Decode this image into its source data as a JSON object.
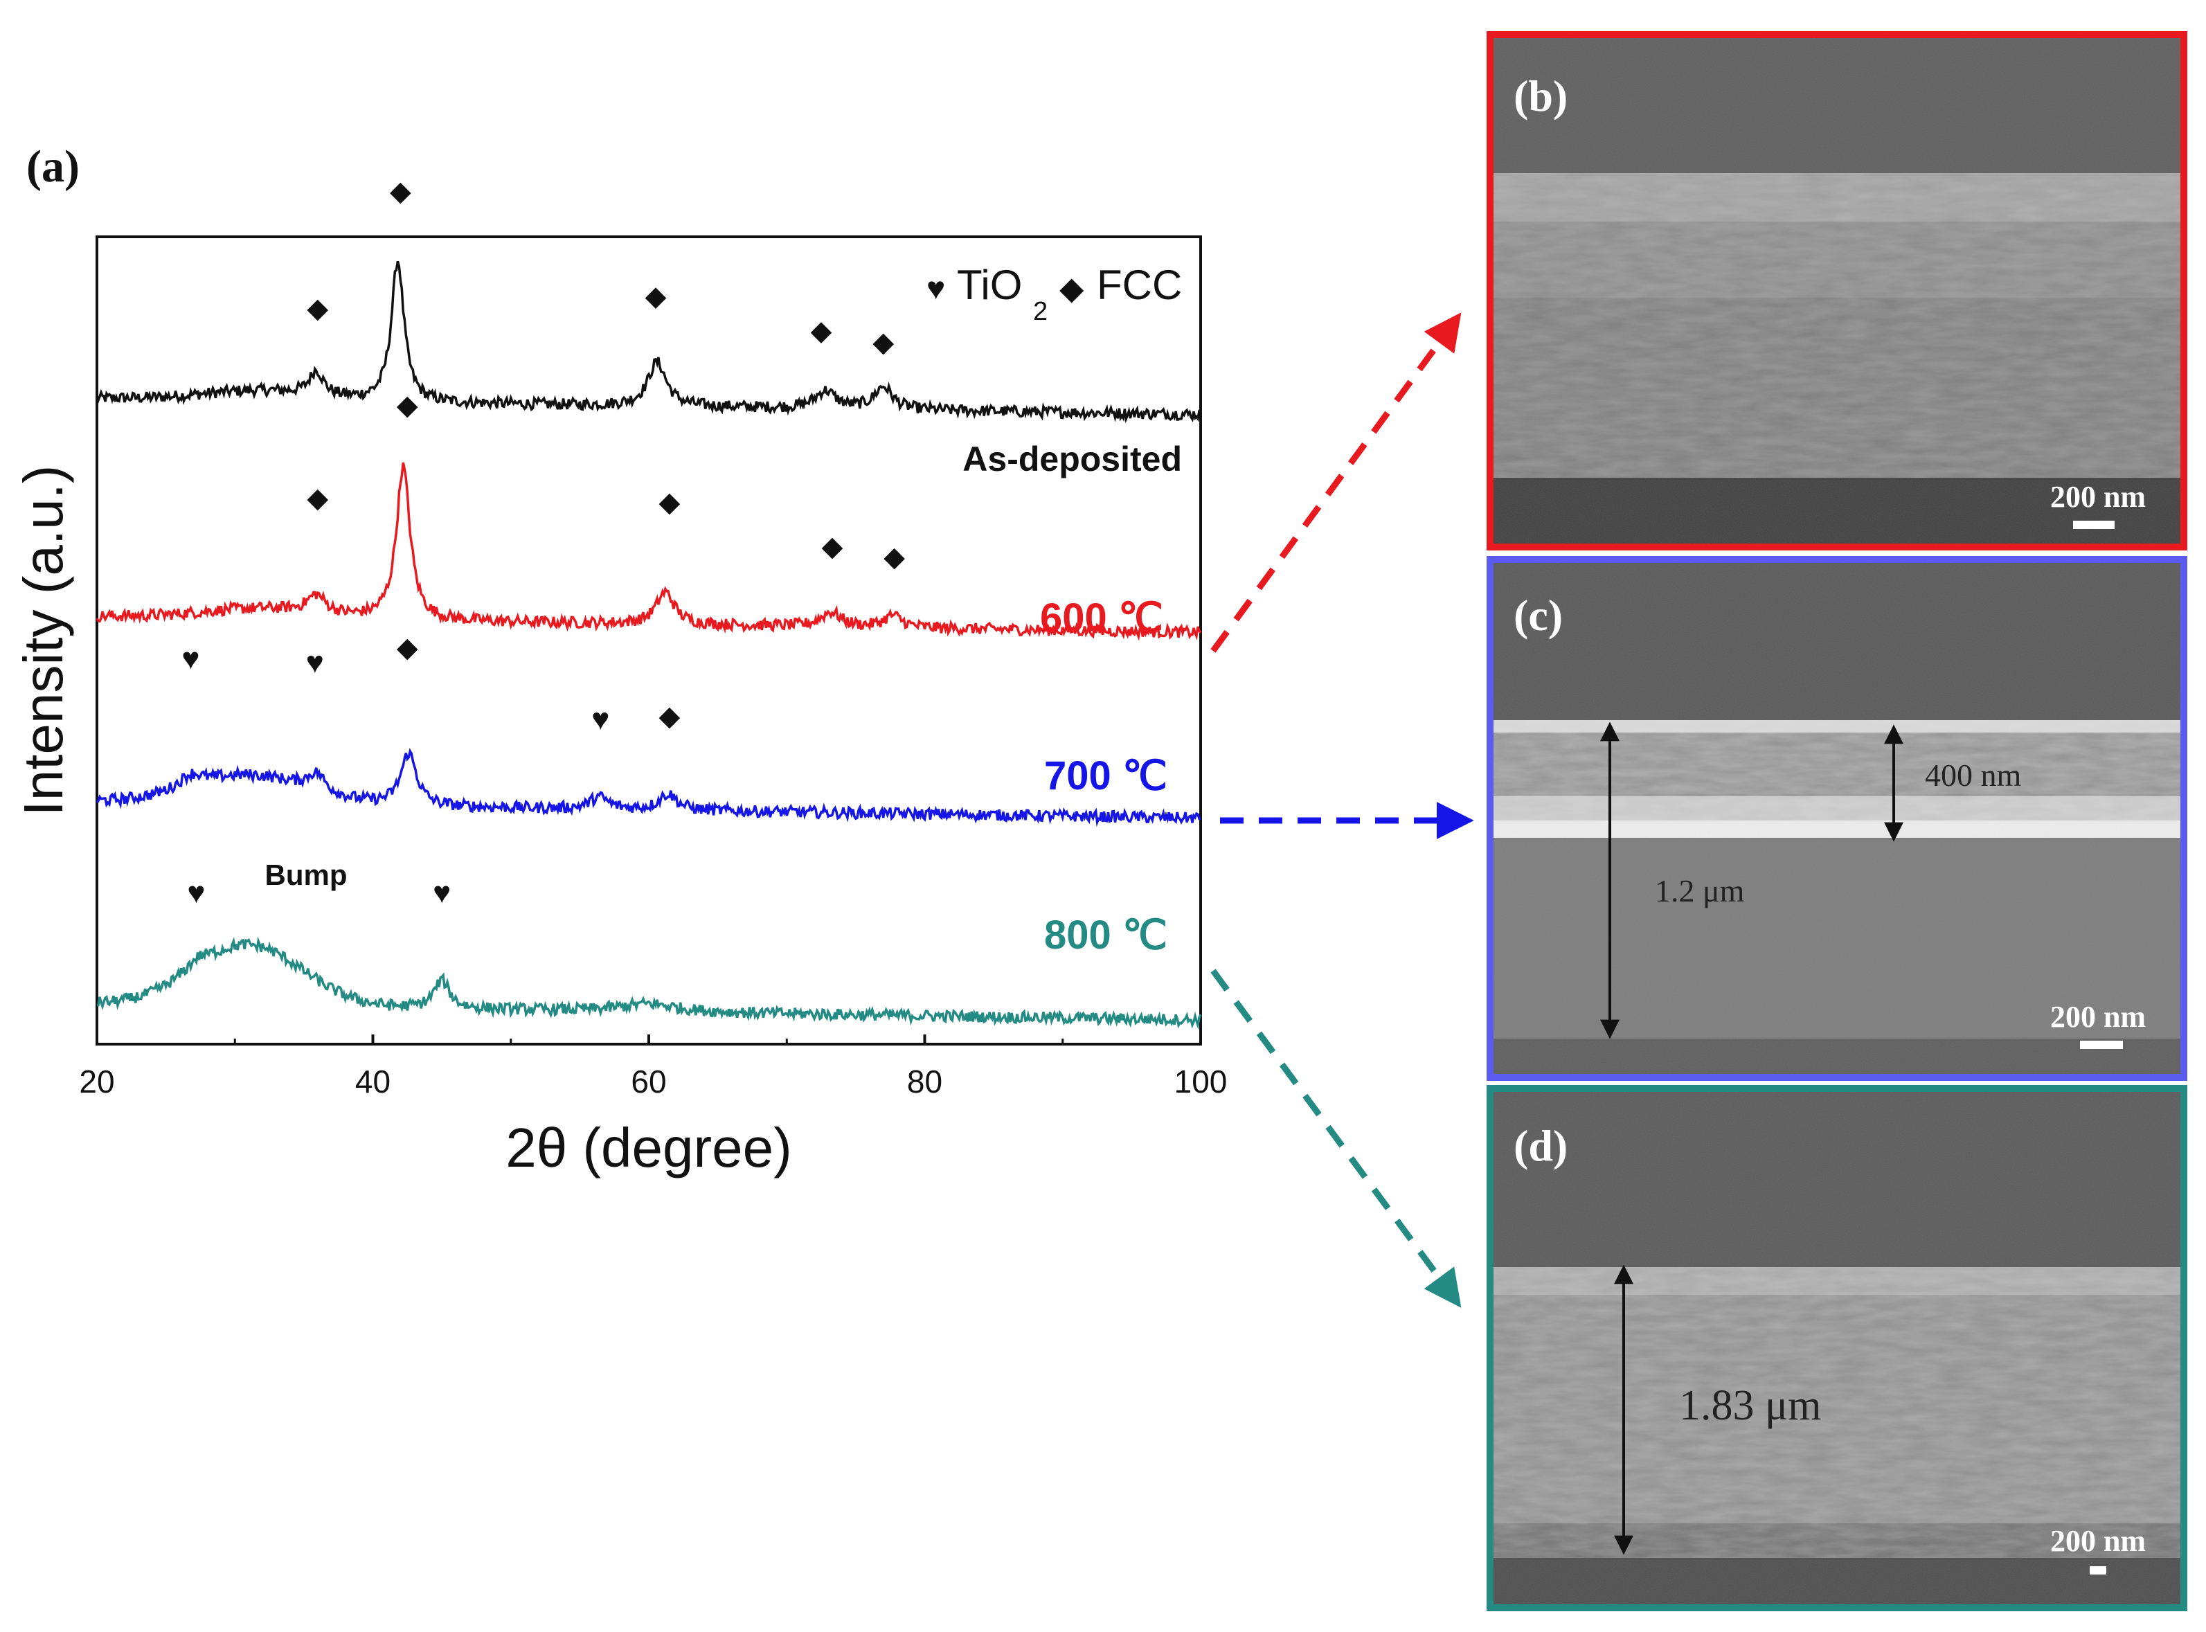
{
  "panel_labels": {
    "a": "(a)",
    "b": "(b)",
    "c": "(c)",
    "d": "(d)"
  },
  "legend": {
    "tio2_symbol": "♥",
    "tio2_text": "TiO",
    "tio2_sub": "2",
    "fcc_symbol": "◆",
    "fcc_text": "FCC"
  },
  "annotations": {
    "bump": "Bump",
    "heart_symbol": "♥",
    "diamond_symbol": "◆"
  },
  "sem": {
    "b": {
      "scale": "200 nm",
      "border_color": "#e8191f"
    },
    "c": {
      "scale": "200 nm",
      "border_color": "#5a5cf0",
      "thickness_outer": "1.2 μm",
      "thickness_inner": "400 nm"
    },
    "d": {
      "scale": "200 nm",
      "border_color": "#238a84",
      "thickness": "1.83 μm"
    }
  },
  "chart_data": {
    "type": "line",
    "xlabel": "2θ (degree)",
    "ylabel": "Intensity (a.u.)",
    "xlim": [
      20,
      100
    ],
    "xticks": [
      20,
      40,
      60,
      80,
      100
    ],
    "ylim": [
      0,
      10
    ],
    "series": [
      {
        "name": "As-deposited",
        "color": "#111111",
        "baseline": 8.0,
        "peaks": [
          [
            35.9,
            0.3,
            0.6
          ],
          [
            41.8,
            1.75,
            0.55
          ],
          [
            60.6,
            0.55,
            0.8
          ],
          [
            72.8,
            0.22,
            0.9
          ],
          [
            77.0,
            0.28,
            0.8
          ]
        ],
        "markers": [
          {
            "x": 36.0,
            "y": 9.0,
            "type": "fcc"
          },
          {
            "x": 42.0,
            "y": 10.45,
            "type": "fcc"
          },
          {
            "x": 60.5,
            "y": 9.15,
            "type": "fcc"
          },
          {
            "x": 72.5,
            "y": 8.72,
            "type": "fcc"
          },
          {
            "x": 77.0,
            "y": 8.58,
            "type": "fcc"
          }
        ]
      },
      {
        "name": "600 ℃",
        "color": "#e8191f",
        "baseline": 5.3,
        "peaks": [
          [
            35.9,
            0.22,
            0.8
          ],
          [
            42.2,
            1.9,
            0.6
          ],
          [
            61.2,
            0.4,
            0.8
          ],
          [
            73.2,
            0.18,
            0.9
          ],
          [
            77.7,
            0.15,
            0.8
          ]
        ],
        "markers": [
          {
            "x": 36.0,
            "y": 6.65,
            "type": "fcc"
          },
          {
            "x": 42.5,
            "y": 7.8,
            "type": "fcc"
          },
          {
            "x": 61.5,
            "y": 6.6,
            "type": "fcc"
          },
          {
            "x": 73.3,
            "y": 6.05,
            "type": "fcc"
          },
          {
            "x": 77.8,
            "y": 5.92,
            "type": "fcc"
          }
        ]
      },
      {
        "name": "700 ℃",
        "color": "#1515e8",
        "baseline": 3.0,
        "peaks": [
          [
            26.8,
            0.15,
            1.0
          ],
          [
            35.9,
            0.22,
            0.8
          ],
          [
            42.6,
            0.65,
            0.7
          ],
          [
            56.4,
            0.15,
            0.8
          ],
          [
            61.4,
            0.2,
            0.8
          ]
        ],
        "markers": [
          {
            "x": 26.8,
            "y": 4.65,
            "type": "tio2"
          },
          {
            "x": 35.8,
            "y": 4.6,
            "type": "tio2"
          },
          {
            "x": 42.5,
            "y": 4.8,
            "type": "fcc"
          },
          {
            "x": 56.5,
            "y": 3.9,
            "type": "tio2"
          },
          {
            "x": 61.5,
            "y": 3.95,
            "type": "fcc"
          }
        ]
      },
      {
        "name": "800 ℃",
        "color": "#238a84",
        "baseline": 0.5,
        "peaks": [
          [
            27.3,
            0.12,
            1.0
          ],
          [
            45.0,
            0.35,
            0.7
          ],
          [
            60.0,
            0.1,
            2.5
          ]
        ],
        "markers": [
          {
            "x": 27.2,
            "y": 1.75,
            "type": "tio2"
          },
          {
            "x": 45.0,
            "y": 1.75,
            "type": "tio2"
          }
        ]
      }
    ]
  }
}
